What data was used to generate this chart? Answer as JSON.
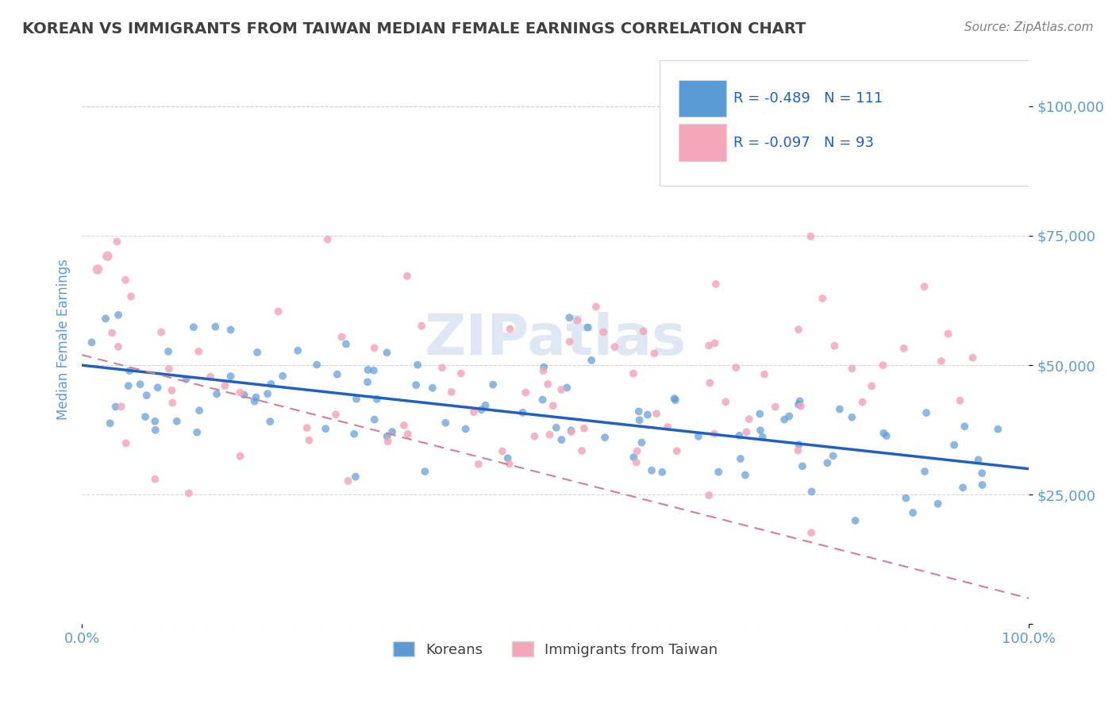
{
  "title": "KOREAN VS IMMIGRANTS FROM TAIWAN MEDIAN FEMALE EARNINGS CORRELATION CHART",
  "source": "Source: ZipAtlas.com",
  "ylabel": "Median Female Earnings",
  "legend_labels": [
    "Koreans",
    "Immigrants from Taiwan"
  ],
  "blue_color": "#5b9bd5",
  "pink_color": "#f4a7b9",
  "blue_line_color": "#2060c0",
  "pink_line_color": "#d08090",
  "title_color": "#404040",
  "tick_label_color": "#5b9bd5",
  "legend_text_color": "#2060c0",
  "watermark_text": "ZIPatlas",
  "watermark_color": "#c8d8ec",
  "background_color": "#ffffff",
  "grid_color": "#cccccc",
  "xlim": [
    0.0,
    1.0
  ],
  "ylim": [
    0,
    110000
  ],
  "yticks": [
    0,
    25000,
    50000,
    75000,
    100000
  ],
  "ytick_labels": [
    "",
    "$25,000",
    "$50,000",
    "$75,000",
    "$100,000"
  ],
  "xtick_labels": [
    "0.0%",
    "100.0%"
  ],
  "blue_R": -0.489,
  "blue_N": 111,
  "pink_R": -0.097,
  "pink_N": 93
}
